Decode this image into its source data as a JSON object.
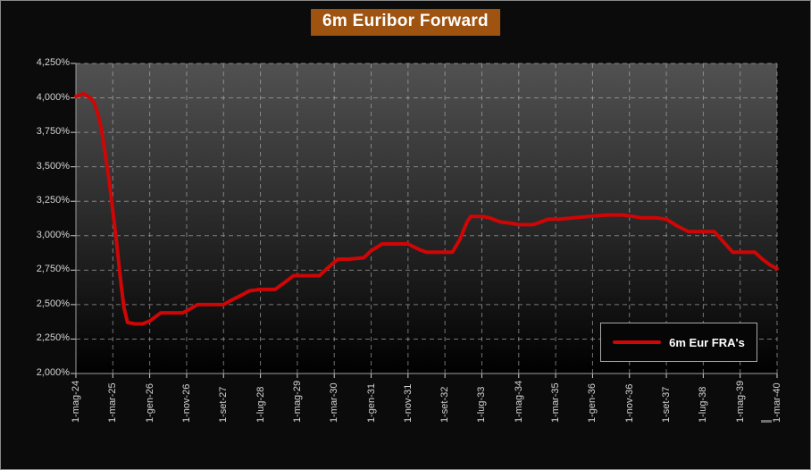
{
  "chart_data": {
    "type": "line",
    "title": "6m Euribor Forward",
    "xlabel": "",
    "ylabel": "",
    "x_unit": "months since 1-mag-24",
    "xlim_months": [
      0,
      190
    ],
    "ylim": [
      2.0,
      4.25
    ],
    "y_tick_step": 0.25,
    "y_tick_labels": [
      "4,250%",
      "4,000%",
      "3,750%",
      "3,500%",
      "3,250%",
      "3,000%",
      "2,750%",
      "2,500%",
      "2,250%",
      "2,000%"
    ],
    "x_tick_months": [
      0,
      10,
      20,
      30,
      40,
      50,
      60,
      70,
      80,
      90,
      100,
      110,
      120,
      130,
      140,
      150,
      160,
      170,
      180,
      190
    ],
    "x_tick_labels": [
      "1-mag-24",
      "1-mar-25",
      "1-gen-26",
      "1-nov-26",
      "1-set-27",
      "1-lug-28",
      "1-mag-29",
      "1-mar-30",
      "1-gen-31",
      "1-nov-31",
      "1-set-32",
      "1-lug-33",
      "1-mag-34",
      "1-mar-35",
      "1-gen-36",
      "1-nov-36",
      "1-set-37",
      "1-lug-38",
      "1-mag-39",
      "1-mar-40"
    ],
    "grid": "dashed",
    "legend_position": "inside-bottom-right",
    "series": [
      {
        "name": "6m Eur FRA's",
        "color": "#ce0606",
        "points_month_value": [
          [
            0,
            4.01
          ],
          [
            2,
            4.03
          ],
          [
            4,
            4.0
          ],
          [
            5,
            3.96
          ],
          [
            6,
            3.88
          ],
          [
            7,
            3.76
          ],
          [
            8,
            3.58
          ],
          [
            9,
            3.4
          ],
          [
            10,
            3.18
          ],
          [
            11,
            2.96
          ],
          [
            12,
            2.7
          ],
          [
            13,
            2.48
          ],
          [
            14,
            2.37
          ],
          [
            16,
            2.36
          ],
          [
            18,
            2.36
          ],
          [
            20,
            2.38
          ],
          [
            22,
            2.42
          ],
          [
            23,
            2.44
          ],
          [
            26,
            2.44
          ],
          [
            29,
            2.44
          ],
          [
            31,
            2.47
          ],
          [
            33,
            2.5
          ],
          [
            36,
            2.5
          ],
          [
            40,
            2.5
          ],
          [
            42,
            2.53
          ],
          [
            45,
            2.57
          ],
          [
            47,
            2.6
          ],
          [
            50,
            2.61
          ],
          [
            54,
            2.61
          ],
          [
            56,
            2.65
          ],
          [
            59,
            2.71
          ],
          [
            62,
            2.71
          ],
          [
            66,
            2.71
          ],
          [
            68,
            2.76
          ],
          [
            71,
            2.83
          ],
          [
            74,
            2.83
          ],
          [
            78,
            2.84
          ],
          [
            80,
            2.89
          ],
          [
            83,
            2.94
          ],
          [
            86,
            2.94
          ],
          [
            90,
            2.94
          ],
          [
            93,
            2.9
          ],
          [
            95,
            2.88
          ],
          [
            99,
            2.88
          ],
          [
            102,
            2.88
          ],
          [
            104,
            2.97
          ],
          [
            106,
            3.1
          ],
          [
            107,
            3.14
          ],
          [
            110,
            3.14
          ],
          [
            112,
            3.13
          ],
          [
            115,
            3.1
          ],
          [
            118,
            3.09
          ],
          [
            120,
            3.08
          ],
          [
            124,
            3.08
          ],
          [
            126,
            3.1
          ],
          [
            128,
            3.12
          ],
          [
            131,
            3.12
          ],
          [
            135,
            3.13
          ],
          [
            139,
            3.14
          ],
          [
            144,
            3.15
          ],
          [
            148,
            3.15
          ],
          [
            151,
            3.14
          ],
          [
            153,
            3.13
          ],
          [
            157,
            3.13
          ],
          [
            160,
            3.12
          ],
          [
            163,
            3.07
          ],
          [
            166,
            3.03
          ],
          [
            170,
            3.03
          ],
          [
            173,
            3.03
          ],
          [
            175,
            2.97
          ],
          [
            178,
            2.88
          ],
          [
            181,
            2.88
          ],
          [
            184,
            2.88
          ],
          [
            186,
            2.83
          ],
          [
            188,
            2.79
          ],
          [
            190,
            2.76
          ]
        ]
      }
    ],
    "legend": {
      "entries": [
        {
          "label": "6m Eur FRA's",
          "color": "#ce0606"
        }
      ]
    }
  },
  "colors": {
    "background": "#0b0b0b",
    "outer_border": "#8a8a8a",
    "title_bg": "#9e5310",
    "title_text": "#ffffff",
    "plot_gradient_top": "#515151",
    "plot_gradient_bottom": "#000000",
    "gridline": "#b5b5b5",
    "axis_text": "#d4d4d4",
    "line": "#ce0606",
    "legend_bg": "#060606",
    "legend_border": "#a8a8a8"
  }
}
